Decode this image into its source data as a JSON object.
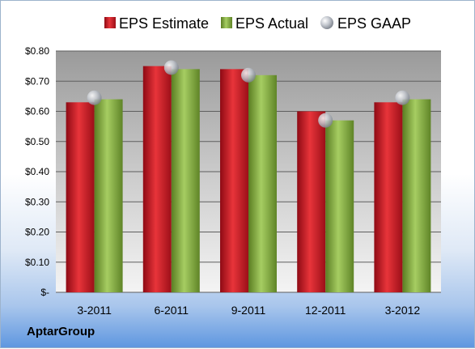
{
  "chart_data": {
    "type": "bar",
    "categories": [
      "3-2011",
      "6-2011",
      "9-2011",
      "12-2011",
      "3-2012"
    ],
    "series": [
      {
        "name": "EPS Estimate",
        "values": [
          0.63,
          0.75,
          0.74,
          0.6,
          0.63
        ],
        "color": "#c8102e"
      },
      {
        "name": "EPS Actual",
        "values": [
          0.64,
          0.74,
          0.72,
          0.57,
          0.64
        ],
        "color": "#7aa53a"
      },
      {
        "name": "EPS GAAP",
        "values": [
          0.645,
          0.745,
          0.72,
          0.57,
          0.645
        ],
        "color": "#b8bcc4",
        "marker": "sphere"
      }
    ],
    "ylim": [
      0,
      0.8
    ],
    "yticks": [
      {
        "value": 0,
        "label": "$-"
      },
      {
        "value": 0.1,
        "label": "$0.10"
      },
      {
        "value": 0.2,
        "label": "$0.20"
      },
      {
        "value": 0.3,
        "label": "$0.30"
      },
      {
        "value": 0.4,
        "label": "$0.40"
      },
      {
        "value": 0.5,
        "label": "$0.50"
      },
      {
        "value": 0.6,
        "label": "$0.60"
      },
      {
        "value": 0.7,
        "label": "$0.70"
      },
      {
        "value": 0.8,
        "label": "$0.80"
      }
    ],
    "grid": true,
    "legend_position": "top",
    "company": "AptarGroup"
  }
}
